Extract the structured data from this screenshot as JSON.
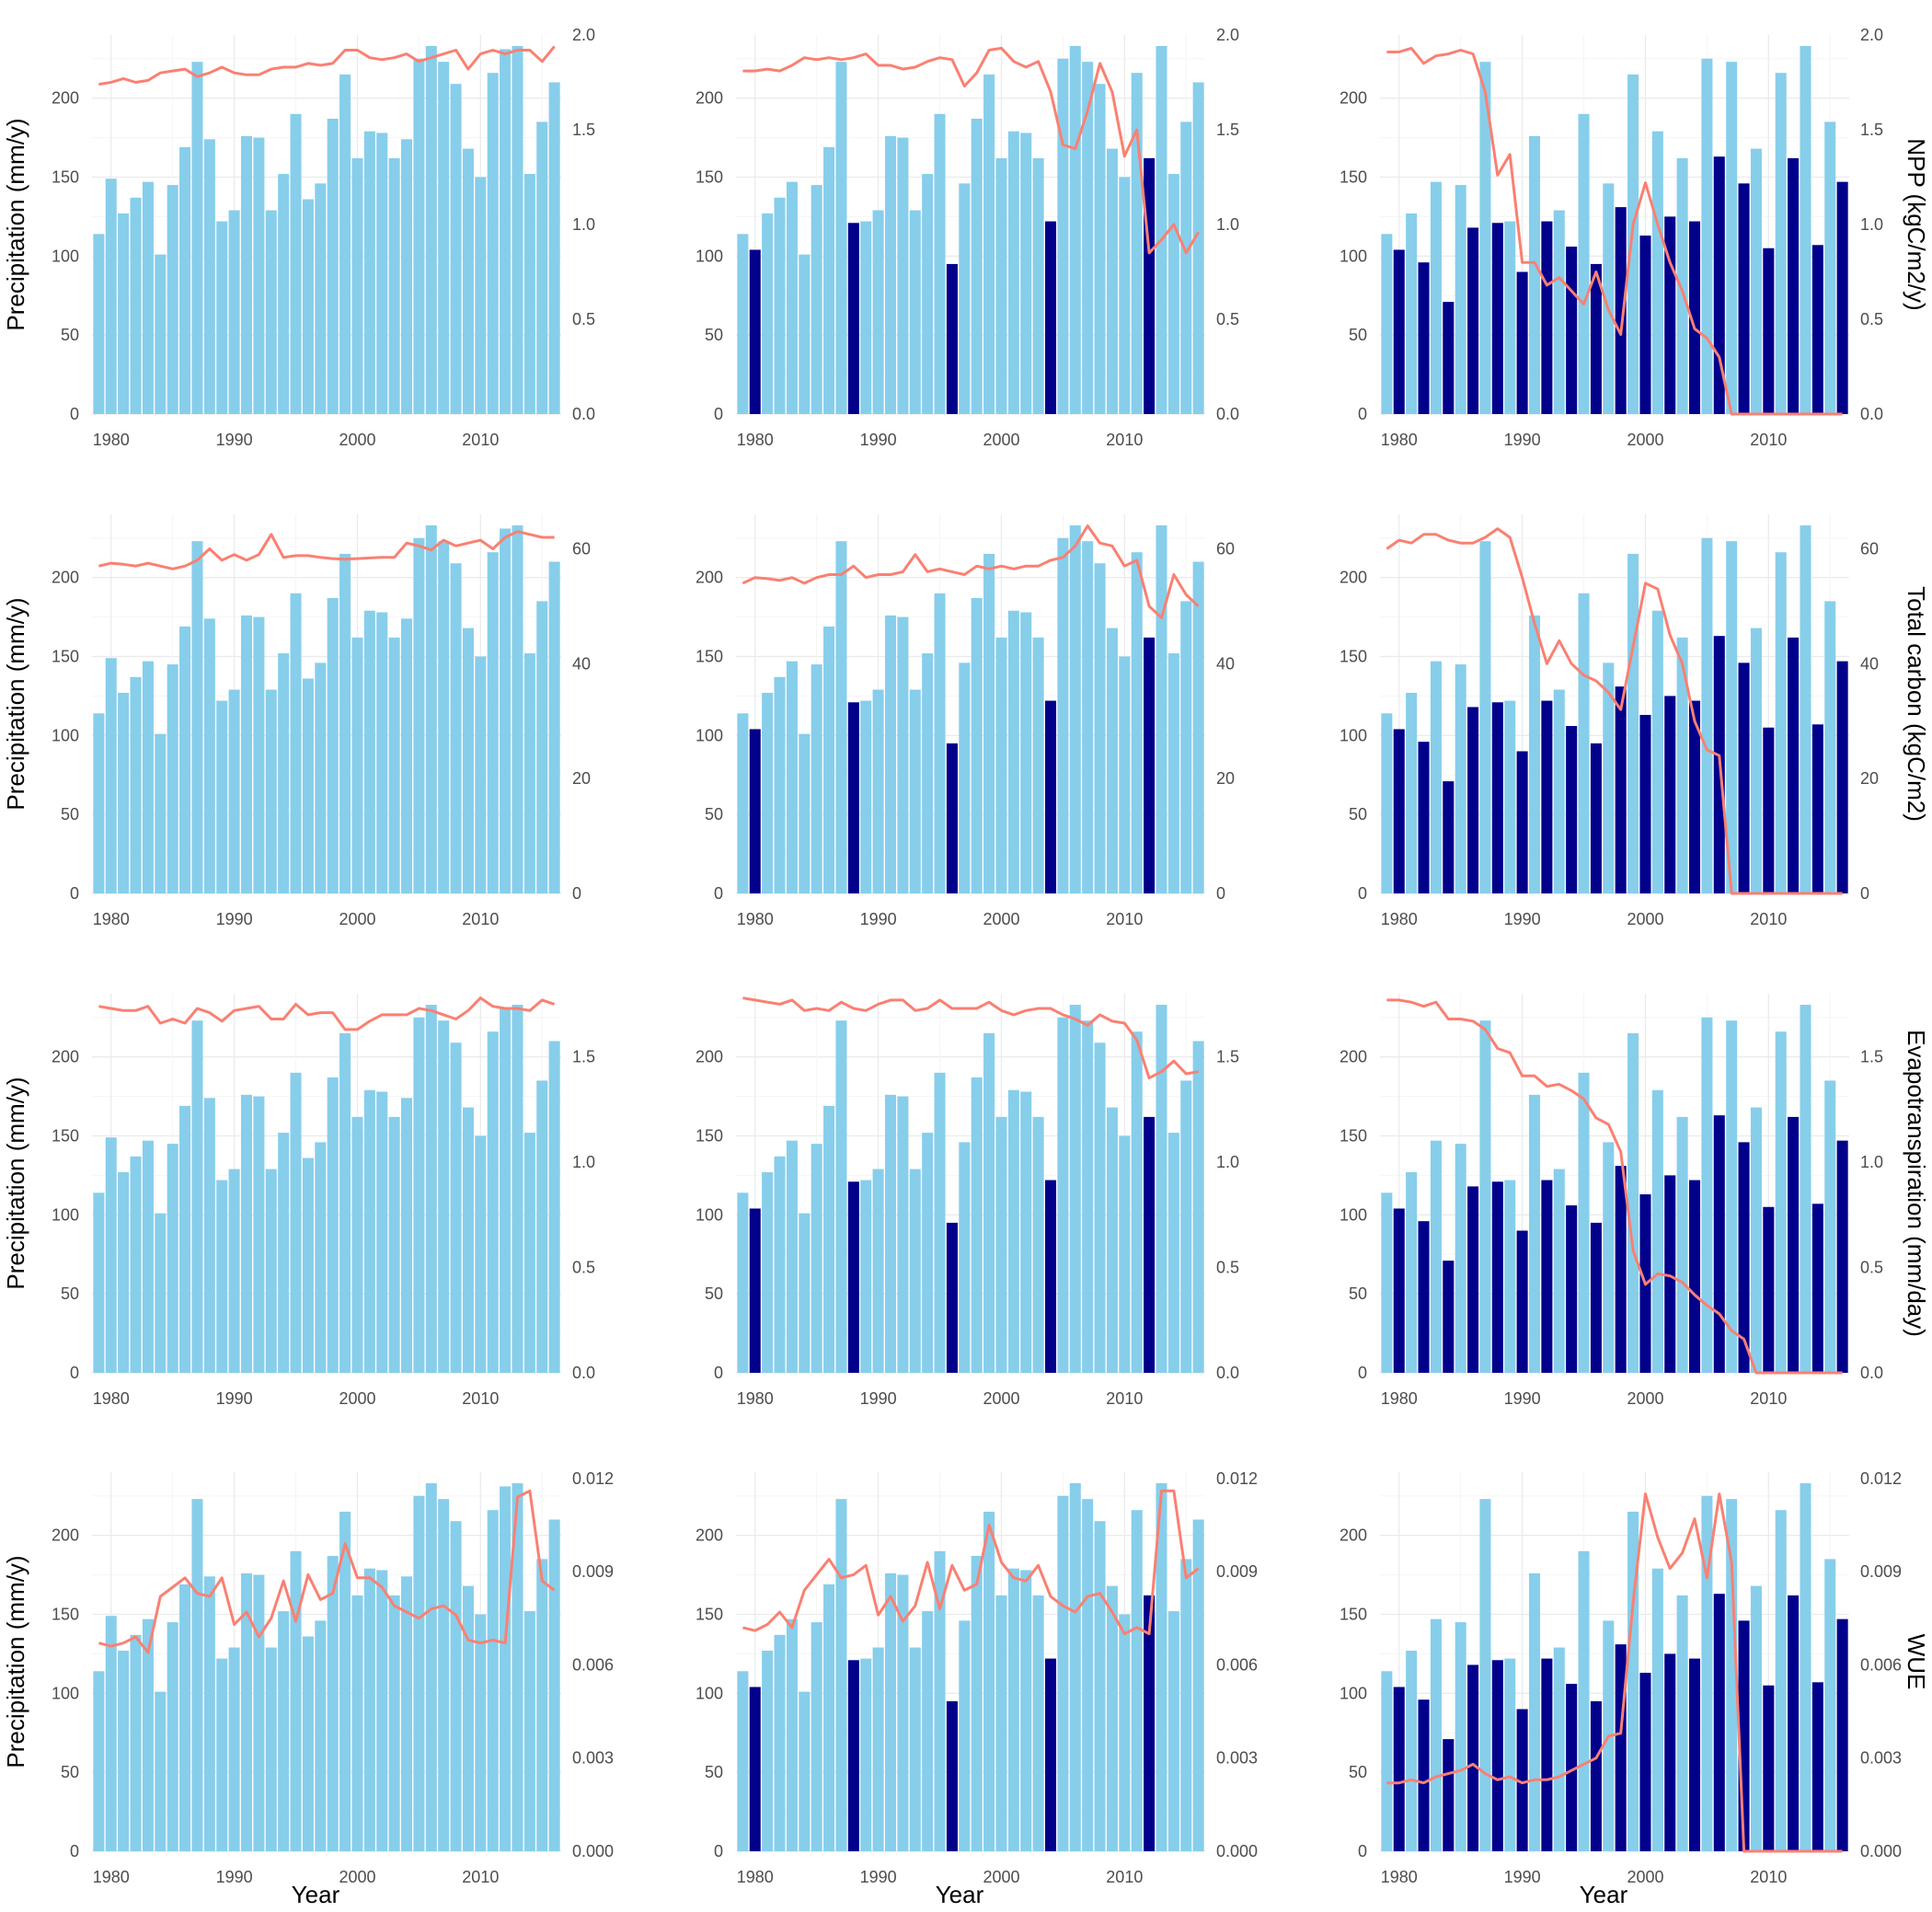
{
  "chart_data": {
    "type": "bar",
    "layout": "4 rows x 3 columns facet grid",
    "colors": {
      "precipitation_bar": "#87ceeb",
      "drought_bar": "#00008b",
      "response_line": "#fa8072"
    },
    "x_axis_label": "Year",
    "x_ticks": [
      1980,
      1990,
      2000,
      2010
    ],
    "x_range": [
      1979,
      2016
    ],
    "precipitation": {
      "ylabel": "Precipitation (mm/y)",
      "ylim": [
        0,
        240
      ],
      "yticks": [
        0,
        50,
        100,
        150,
        200
      ],
      "years": [
        1979,
        1980,
        1981,
        1982,
        1983,
        1984,
        1985,
        1986,
        1987,
        1988,
        1989,
        1990,
        1991,
        1992,
        1993,
        1994,
        1995,
        1996,
        1997,
        1998,
        1999,
        2000,
        2001,
        2002,
        2003,
        2004,
        2005,
        2006,
        2007,
        2008,
        2009,
        2010,
        2011,
        2012,
        2013,
        2014,
        2015,
        2016
      ],
      "baseline": [
        114,
        149,
        127,
        137,
        147,
        101,
        145,
        169,
        223,
        174,
        122,
        129,
        176,
        175,
        129,
        152,
        190,
        136,
        146,
        187,
        215,
        162,
        179,
        178,
        162,
        174,
        225,
        233,
        223,
        209,
        168,
        150,
        216,
        231,
        233,
        152,
        185,
        210
      ]
    },
    "drought_scenarios": [
      {
        "column": 1,
        "drought_years": []
      },
      {
        "column": 2,
        "drought_years": [
          1980,
          1988,
          1996,
          2004,
          2012
        ],
        "drought_values": [
          104,
          121,
          95,
          122,
          162
        ]
      },
      {
        "column": 3,
        "drought_years": [
          1980,
          1982,
          1984,
          1986,
          1988,
          1990,
          1992,
          1994,
          1996,
          1998,
          2000,
          2002,
          2004,
          2006,
          2008,
          2010,
          2012,
          2014,
          2016
        ],
        "drought_values": [
          104,
          96,
          71,
          118,
          121,
          90,
          122,
          106,
          95,
          131,
          113,
          125,
          122,
          163,
          146,
          105,
          162,
          107,
          147
        ]
      }
    ],
    "variables": [
      {
        "name": "NPP",
        "ylabel_right": "NPP (kgC/m2/y)",
        "ylim_right": [
          0,
          2.0
        ],
        "yticks_right": [
          "0.0",
          "0.5",
          "1.0",
          "1.5",
          "2.0"
        ],
        "series": [
          [
            1.74,
            1.75,
            1.77,
            1.75,
            1.76,
            1.8,
            1.81,
            1.82,
            1.78,
            1.8,
            1.83,
            1.8,
            1.79,
            1.79,
            1.82,
            1.83,
            1.83,
            1.85,
            1.84,
            1.85,
            1.92,
            1.92,
            1.88,
            1.87,
            1.88,
            1.9,
            1.86,
            1.88,
            1.9,
            1.92,
            1.82,
            1.9,
            1.92,
            1.9,
            1.92,
            1.92,
            1.86,
            1.94
          ],
          [
            1.81,
            1.81,
            1.82,
            1.81,
            1.84,
            1.88,
            1.87,
            1.88,
            1.87,
            1.88,
            1.9,
            1.84,
            1.84,
            1.82,
            1.83,
            1.86,
            1.88,
            1.87,
            1.73,
            1.8,
            1.92,
            1.93,
            1.86,
            1.83,
            1.86,
            1.7,
            1.42,
            1.4,
            1.6,
            1.85,
            1.7,
            1.36,
            1.5,
            0.85,
            0.92,
            1.0,
            0.85,
            0.96
          ],
          [
            1.91,
            1.91,
            1.93,
            1.85,
            1.89,
            1.9,
            1.92,
            1.9,
            1.7,
            1.26,
            1.37,
            0.8,
            0.8,
            0.68,
            0.72,
            0.65,
            0.58,
            0.75,
            0.55,
            0.42,
            1.0,
            1.22,
            1.0,
            0.8,
            0.65,
            0.45,
            0.4,
            0.3,
            0.0,
            0.0,
            0.0,
            0.0,
            0.0,
            0.0,
            0.0,
            0.0,
            0.0,
            0.0
          ]
        ]
      },
      {
        "name": "Total carbon",
        "ylabel_right": "Total carbon (kgC/m2)",
        "ylim_right": [
          0,
          66
        ],
        "yticks_right": [
          "0",
          "20",
          "40",
          "60"
        ],
        "series": [
          [
            57,
            57.5,
            57.3,
            57,
            57.5,
            57,
            56.5,
            57,
            58,
            60,
            58,
            59,
            58,
            59,
            62.5,
            58.5,
            58.8,
            58.8,
            58.5,
            58.3,
            58.2,
            58.3,
            58.4,
            58.5,
            58.5,
            61,
            60.5,
            59.8,
            61.5,
            60.5,
            61,
            61.5,
            60,
            62,
            63,
            62.5,
            62,
            62
          ],
          [
            54,
            55,
            54.8,
            54.5,
            55,
            54,
            55,
            55.5,
            55.5,
            57,
            55,
            55.5,
            55.5,
            56,
            59,
            56,
            56.5,
            56,
            55.5,
            57,
            56.5,
            57,
            56.5,
            57,
            57,
            58,
            58.5,
            60.5,
            64,
            61,
            60.5,
            57,
            58,
            50,
            48,
            55.5,
            52,
            50
          ],
          [
            60,
            61.5,
            61,
            62.5,
            62.5,
            61.5,
            61,
            61,
            62,
            63.5,
            62,
            55,
            47,
            40,
            44,
            40,
            38,
            37,
            35,
            32,
            43,
            54,
            53,
            45,
            40,
            30,
            25,
            24,
            0,
            0,
            0,
            0,
            0,
            0,
            0,
            0,
            0,
            0
          ]
        ]
      },
      {
        "name": "Evapotranspiration",
        "ylabel_right": "Evapotranspiration (mm/day)",
        "ylim_right": [
          0,
          1.8
        ],
        "yticks_right": [
          "0.0",
          "0.5",
          "1.0",
          "1.5"
        ],
        "series": [
          [
            1.74,
            1.73,
            1.72,
            1.72,
            1.74,
            1.66,
            1.68,
            1.66,
            1.73,
            1.71,
            1.67,
            1.72,
            1.73,
            1.74,
            1.68,
            1.68,
            1.75,
            1.7,
            1.71,
            1.71,
            1.63,
            1.63,
            1.67,
            1.7,
            1.7,
            1.7,
            1.73,
            1.72,
            1.7,
            1.68,
            1.72,
            1.78,
            1.74,
            1.73,
            1.73,
            1.72,
            1.77,
            1.75
          ],
          [
            1.78,
            1.77,
            1.76,
            1.75,
            1.77,
            1.72,
            1.73,
            1.72,
            1.76,
            1.73,
            1.72,
            1.75,
            1.77,
            1.77,
            1.72,
            1.73,
            1.77,
            1.73,
            1.73,
            1.73,
            1.76,
            1.72,
            1.7,
            1.72,
            1.73,
            1.73,
            1.7,
            1.68,
            1.65,
            1.7,
            1.67,
            1.66,
            1.58,
            1.4,
            1.43,
            1.48,
            1.42,
            1.43
          ],
          [
            1.77,
            1.77,
            1.76,
            1.74,
            1.76,
            1.68,
            1.68,
            1.67,
            1.63,
            1.54,
            1.52,
            1.41,
            1.41,
            1.36,
            1.37,
            1.34,
            1.3,
            1.21,
            1.18,
            1.05,
            0.58,
            0.42,
            0.47,
            0.46,
            0.43,
            0.37,
            0.32,
            0.28,
            0.2,
            0.16,
            0.0,
            0.0,
            0.0,
            0.0,
            0.0,
            0.0,
            0.0,
            0.0
          ]
        ]
      },
      {
        "name": "WUE",
        "ylabel_right": "WUE",
        "ylim_right": [
          0,
          0.0122
        ],
        "yticks_right": [
          "0.000",
          "0.003",
          "0.006",
          "0.009",
          "0.012"
        ],
        "series": [
          [
            0.0067,
            0.0066,
            0.0067,
            0.0069,
            0.0064,
            0.0082,
            0.0085,
            0.0088,
            0.0083,
            0.0082,
            0.0088,
            0.0073,
            0.0077,
            0.0069,
            0.0075,
            0.0087,
            0.0074,
            0.0089,
            0.0081,
            0.0083,
            0.0099,
            0.0088,
            0.0088,
            0.0085,
            0.0079,
            0.0077,
            0.0075,
            0.0078,
            0.0079,
            0.0076,
            0.0068,
            0.0067,
            0.0068,
            0.0067,
            0.0114,
            0.0116,
            0.0087,
            0.0084
          ],
          [
            0.0072,
            0.0071,
            0.0073,
            0.0077,
            0.0072,
            0.0084,
            0.0089,
            0.0094,
            0.0088,
            0.0089,
            0.0092,
            0.0076,
            0.0082,
            0.0074,
            0.0079,
            0.0093,
            0.0078,
            0.0092,
            0.0084,
            0.0086,
            0.0105,
            0.0093,
            0.0088,
            0.0087,
            0.0092,
            0.0082,
            0.0079,
            0.0077,
            0.0082,
            0.0083,
            0.0077,
            0.007,
            0.0072,
            0.007,
            0.0116,
            0.0116,
            0.0088,
            0.0091
          ],
          [
            0.0022,
            0.0022,
            0.0023,
            0.0022,
            0.0024,
            0.0025,
            0.0026,
            0.0028,
            0.0025,
            0.0023,
            0.0024,
            0.0022,
            0.0023,
            0.0023,
            0.0024,
            0.0026,
            0.0028,
            0.003,
            0.0037,
            0.0038,
            0.008,
            0.0115,
            0.0101,
            0.0091,
            0.0096,
            0.0107,
            0.0088,
            0.0115,
            0.0093,
            0.0,
            0.0,
            0.0,
            0.0,
            0.0,
            0.0,
            0.0,
            0.0,
            0.0
          ]
        ]
      }
    ]
  }
}
